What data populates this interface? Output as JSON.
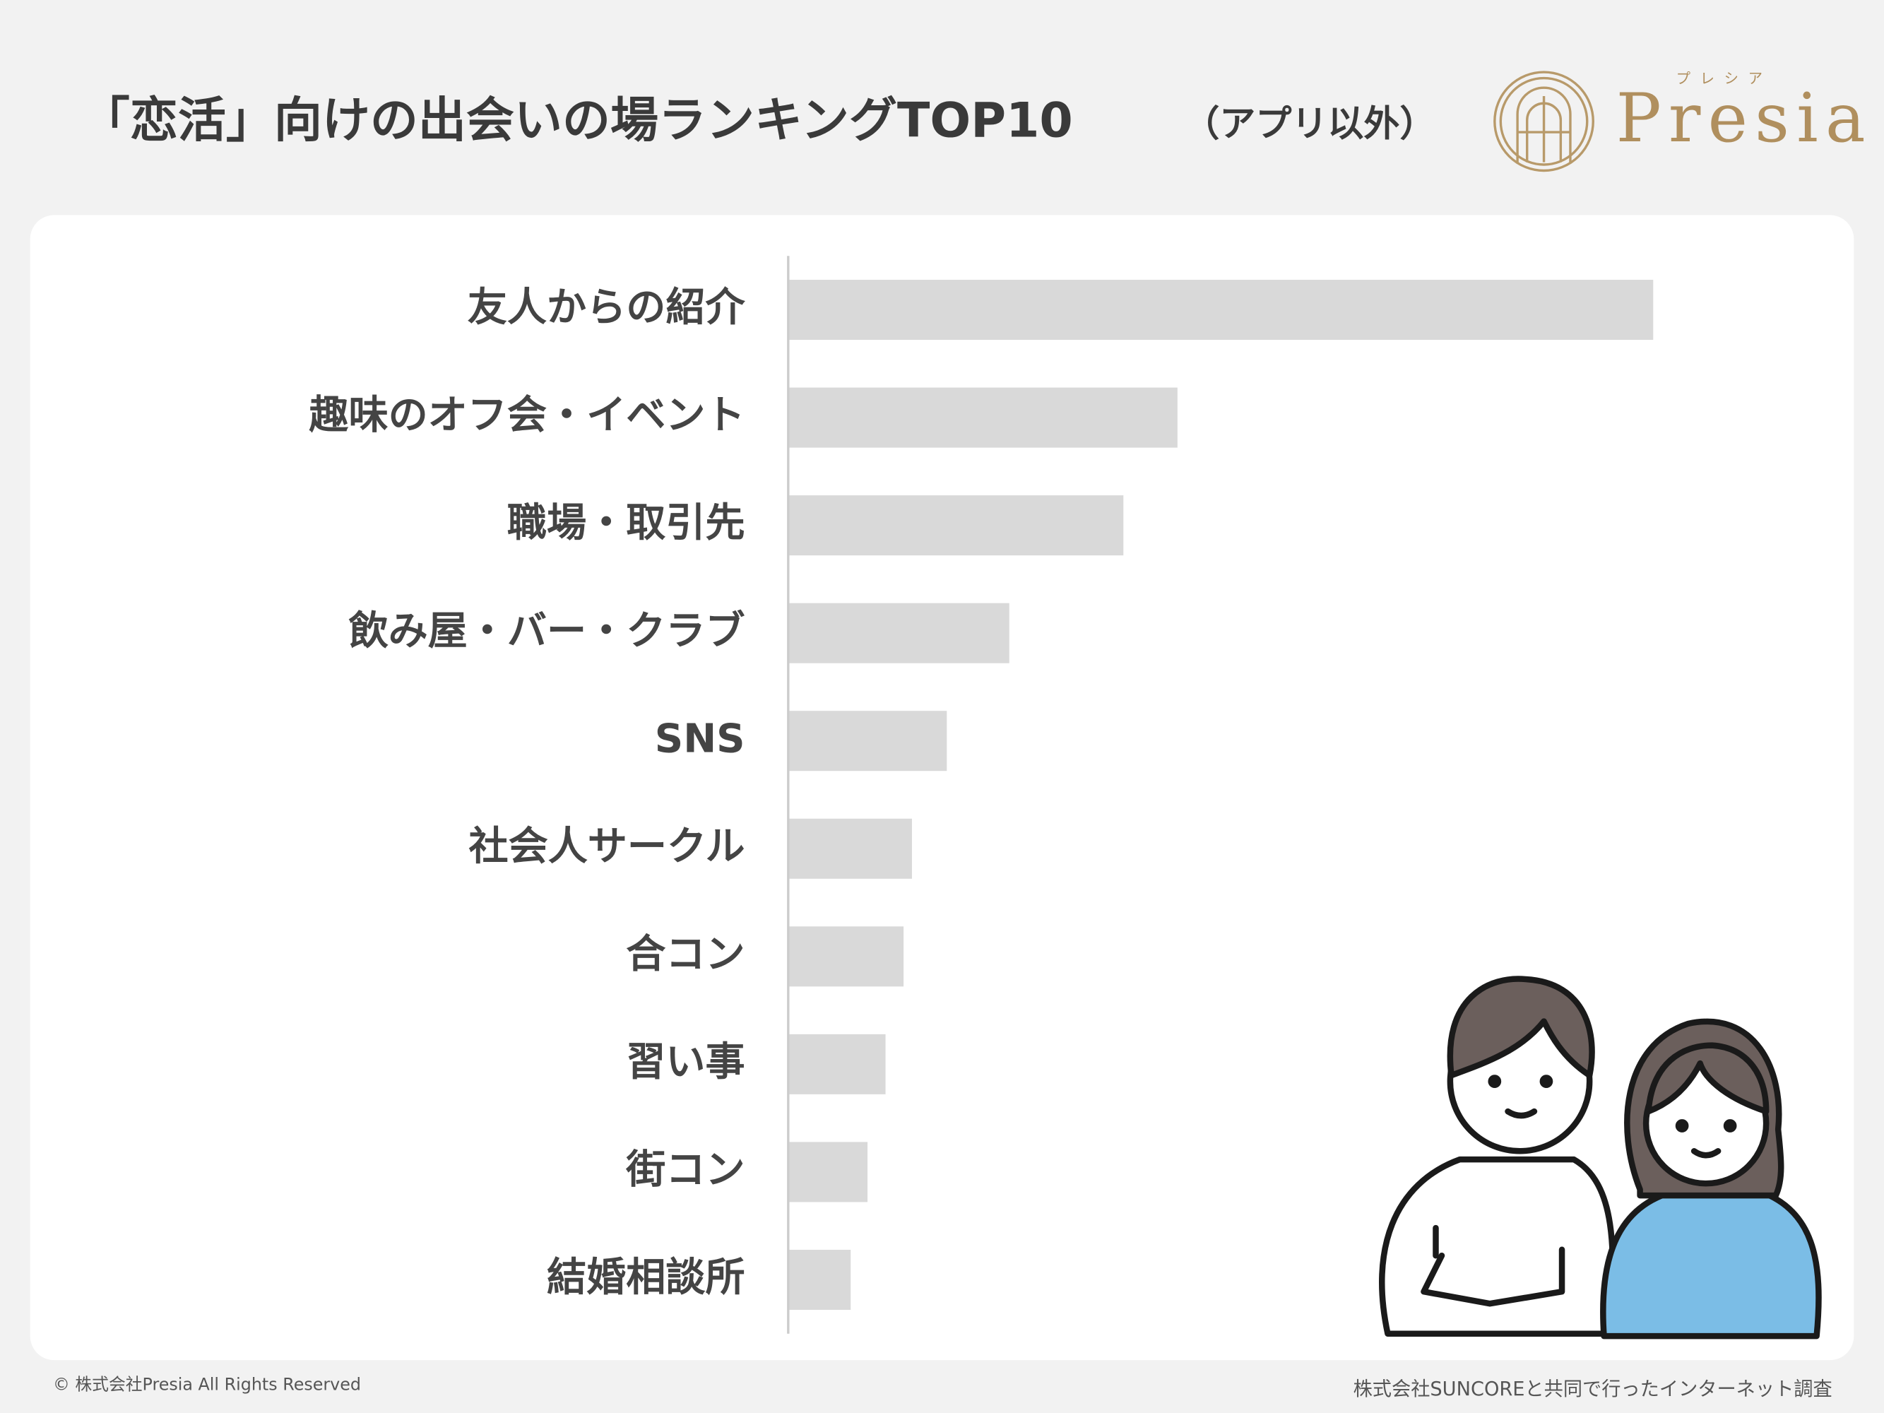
{
  "chart_data": {
    "type": "bar",
    "orientation": "horizontal",
    "title": "「恋活」向けの出会いの場ランキングTOP10",
    "subtitle": "（アプリ以外）",
    "categories": [
      "友人からの紹介",
      "趣味のオフ会・イベント",
      "職場・取引先",
      "飲み屋・バー・クラブ",
      "SNS",
      "社会人サークル",
      "合コン",
      "習い事",
      "街コン",
      "結婚相談所"
    ],
    "values": [
      719,
      323,
      278,
      183,
      131,
      102,
      95,
      80,
      65,
      51
    ],
    "color": "#d9d9d9",
    "xlim": [
      0,
      840
    ]
  },
  "logo": {
    "name": "Presia",
    "reading": "プレシア"
  },
  "footer": {
    "copyright": "© 株式会社Presia All Rights Reserved",
    "source": "株式会社SUNCOREと共同で行ったインターネット調査"
  }
}
